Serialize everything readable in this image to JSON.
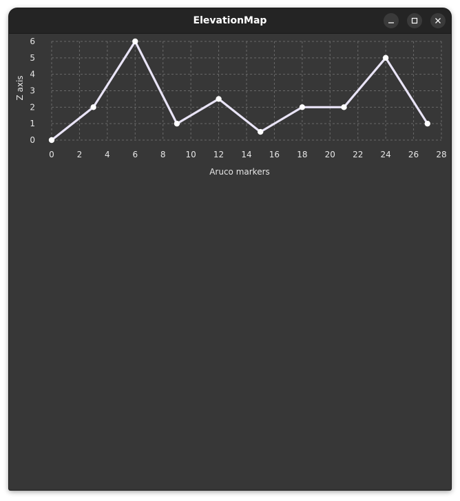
{
  "window": {
    "title": "ElevationMap",
    "controls": {
      "minimize": "minimize-icon",
      "maximize": "maximize-icon",
      "close": "close-icon"
    }
  },
  "colors": {
    "window_bg": "#373737",
    "titlebar_bg": "#242424",
    "line": "#e9e4f7",
    "grid": "#6a6a6a",
    "text": "#e6e6e6"
  },
  "chart_data": {
    "type": "line",
    "xlabel": "Aruco markers",
    "ylabel": "Z axis",
    "x": [
      0,
      3,
      6,
      9,
      12,
      15,
      18,
      21,
      24,
      27
    ],
    "series": [
      {
        "values": [
          0,
          2,
          6,
          1,
          2.5,
          0.5,
          2,
          2,
          5,
          1
        ]
      }
    ],
    "xlim": [
      0,
      28
    ],
    "ylim": [
      0,
      6
    ],
    "xticks": [
      "0",
      "2",
      "4",
      "6",
      "8",
      "10",
      "12",
      "14",
      "16",
      "18",
      "20",
      "22",
      "24",
      "26",
      "28"
    ],
    "yticks": [
      "0",
      "1",
      "2",
      "3",
      "4",
      "5",
      "6"
    ],
    "grid": true,
    "grid_style": "dashed"
  }
}
